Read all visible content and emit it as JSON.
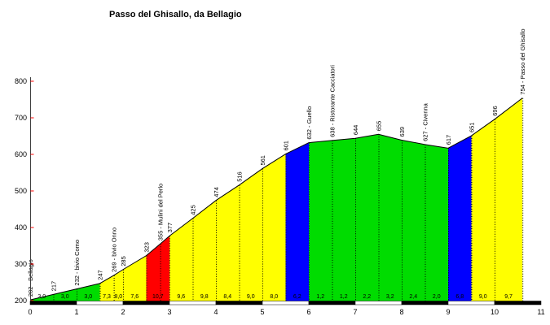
{
  "chart_data": {
    "type": "area",
    "title": "Passo del Ghisallo, da Bellagio",
    "x_unit": "km",
    "xlim": [
      0,
      11
    ],
    "ylim": [
      200,
      800
    ],
    "y_ticks": [
      200,
      300,
      400,
      500,
      600,
      700,
      800
    ],
    "x_ticks": [
      "0",
      "1",
      "2",
      "3",
      "4",
      "5",
      "6",
      "7",
      "8",
      "9",
      "10",
      "11"
    ],
    "grid": false,
    "legend": "none",
    "points": [
      {
        "km": 0.0,
        "elev": 202,
        "label": "202 - Bellagio"
      },
      {
        "km": 0.5,
        "elev": 217,
        "label": "217"
      },
      {
        "km": 1.0,
        "elev": 232,
        "label": "232 - bivio Como"
      },
      {
        "km": 1.5,
        "elev": 247,
        "label": "247"
      },
      {
        "km": 1.8,
        "elev": 269,
        "label": "269 - bivio Onno"
      },
      {
        "km": 2.0,
        "elev": 285,
        "label": "285"
      },
      {
        "km": 2.5,
        "elev": 323,
        "label": "323"
      },
      {
        "km": 2.8,
        "elev": 355,
        "label": "355 - Mulini del Perlo"
      },
      {
        "km": 3.0,
        "elev": 377,
        "label": "377"
      },
      {
        "km": 3.5,
        "elev": 425,
        "label": "425"
      },
      {
        "km": 4.0,
        "elev": 474,
        "label": "474"
      },
      {
        "km": 4.5,
        "elev": 516,
        "label": "516"
      },
      {
        "km": 5.0,
        "elev": 561,
        "label": "561"
      },
      {
        "km": 5.5,
        "elev": 601,
        "label": "601"
      },
      {
        "km": 6.0,
        "elev": 632,
        "label": "632 - Guello"
      },
      {
        "km": 6.5,
        "elev": 638,
        "label": "638 - Ristorante Cacciatori"
      },
      {
        "km": 7.0,
        "elev": 644,
        "label": "644"
      },
      {
        "km": 7.5,
        "elev": 655,
        "label": "655"
      },
      {
        "km": 8.0,
        "elev": 639,
        "label": "639"
      },
      {
        "km": 8.5,
        "elev": 627,
        "label": "627 - Civenna"
      },
      {
        "km": 9.0,
        "elev": 617,
        "label": "617"
      },
      {
        "km": 9.5,
        "elev": 651,
        "label": "651"
      },
      {
        "km": 10.0,
        "elev": 696,
        "label": "696"
      },
      {
        "km": 10.6,
        "elev": 754,
        "label": "754 - Passo del Ghisallo"
      }
    ],
    "segments": [
      {
        "from": 0.0,
        "to": 0.5,
        "grade": "3,0",
        "color": "green"
      },
      {
        "from": 0.5,
        "to": 1.0,
        "grade": "3,0",
        "color": "green"
      },
      {
        "from": 1.0,
        "to": 1.5,
        "grade": "3,0",
        "color": "green"
      },
      {
        "from": 1.5,
        "to": 1.8,
        "grade": "7,3",
        "color": "yellow"
      },
      {
        "from": 1.8,
        "to": 2.0,
        "grade": "8,0",
        "color": "yellow"
      },
      {
        "from": 2.0,
        "to": 2.5,
        "grade": "7,6",
        "color": "yellow"
      },
      {
        "from": 2.5,
        "to": 3.0,
        "grade": "10,7",
        "color": "red"
      },
      {
        "from": 3.0,
        "to": 3.5,
        "grade": "9,6",
        "color": "yellow"
      },
      {
        "from": 3.5,
        "to": 4.0,
        "grade": "9,8",
        "color": "yellow"
      },
      {
        "from": 4.0,
        "to": 4.5,
        "grade": "8,4",
        "color": "yellow"
      },
      {
        "from": 4.5,
        "to": 5.0,
        "grade": "9,0",
        "color": "yellow"
      },
      {
        "from": 5.0,
        "to": 5.5,
        "grade": "8,0",
        "color": "yellow"
      },
      {
        "from": 5.5,
        "to": 6.0,
        "grade": "6,2",
        "color": "blue"
      },
      {
        "from": 6.0,
        "to": 6.5,
        "grade": "1,2",
        "color": "green"
      },
      {
        "from": 6.5,
        "to": 7.0,
        "grade": "1,2",
        "color": "green"
      },
      {
        "from": 7.0,
        "to": 7.5,
        "grade": "2,2",
        "color": "green"
      },
      {
        "from": 7.5,
        "to": 8.0,
        "grade": "3,2",
        "color": "green"
      },
      {
        "from": 8.0,
        "to": 8.5,
        "grade": "2,4",
        "color": "green"
      },
      {
        "from": 8.5,
        "to": 9.0,
        "grade": "2,0",
        "color": "green"
      },
      {
        "from": 9.0,
        "to": 9.5,
        "grade": "6,8",
        "color": "blue"
      },
      {
        "from": 9.5,
        "to": 10.0,
        "grade": "9,0",
        "color": "yellow"
      },
      {
        "from": 10.0,
        "to": 10.6,
        "grade": "9,7",
        "color": "yellow"
      }
    ],
    "colors": {
      "green": "#00DC00",
      "yellow": "#FFFF00",
      "red": "#FF0000",
      "blue": "#0000FF",
      "profile_line": "#000000",
      "axis": "#404040",
      "y_tick": "#FF0000",
      "text": "#000000",
      "bar_even": "#000000",
      "bar_odd": "#FFFFFF"
    }
  }
}
